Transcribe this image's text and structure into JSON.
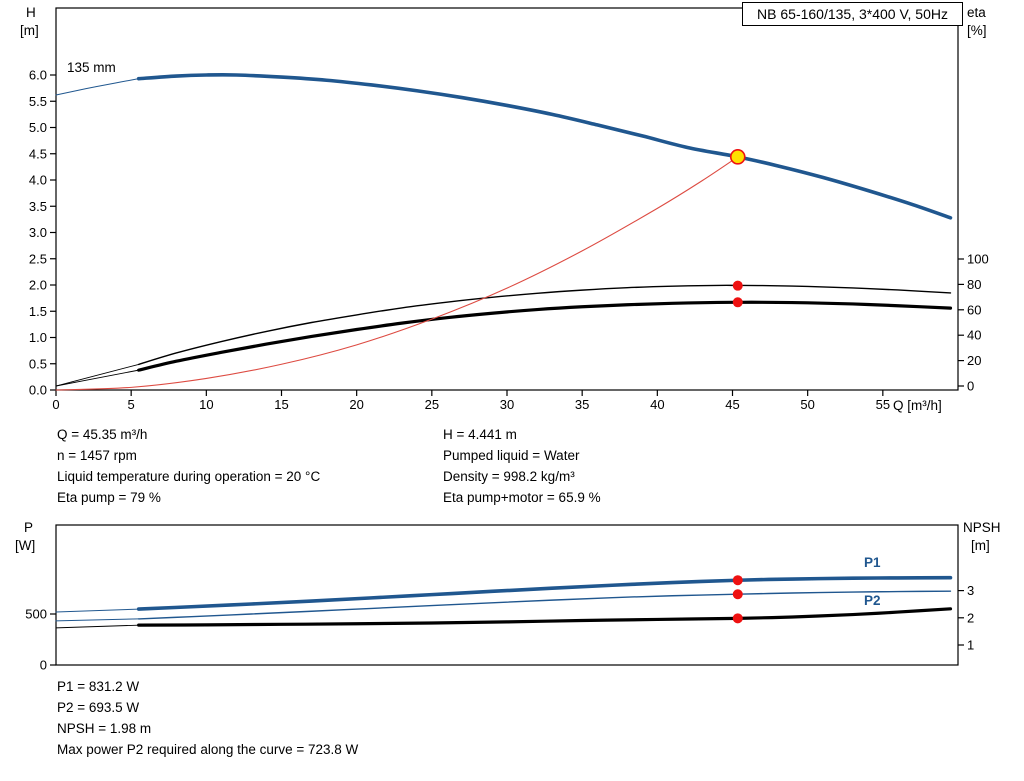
{
  "labels": {
    "h_axis": "H",
    "h_unit": "[m]",
    "eta_axis": "eta",
    "eta_unit": "[%]",
    "p_axis": "P",
    "p_unit": "[W]",
    "npsh_axis": "NPSH",
    "npsh_unit": "[m]",
    "impeller": "135 mm",
    "p1": "P1",
    "p2": "P2"
  },
  "colors": {
    "curve_blue": "#20578f",
    "curve_red": "#dd4b42",
    "dot_red": "#ee1111",
    "duty_yellow": "#ffe000",
    "black": "#000000"
  },
  "info_top_left": [
    "Q = 45.35 m³/h",
    "n = 1457 rpm",
    "Liquid temperature during operation = 20 °C",
    "Eta pump = 79 %"
  ],
  "info_top_right": [
    "H = 4.441 m",
    "Pumped liquid = Water",
    "Density = 998.2 kg/m³",
    "Eta pump+motor = 65.9 %"
  ],
  "info_bottom": [
    "P1 = 831.2 W",
    "P2 = 693.5 W",
    "NPSH = 1.98 m",
    "Max power P2 required along the curve = 723.8 W"
  ],
  "chart_data": [
    {
      "type": "line",
      "title": "NB 65-160/135, 3*400 V, 50Hz",
      "x_axis": {
        "label": "Q [m³/h]",
        "range": [
          0,
          60
        ],
        "ticks": [
          0,
          5,
          10,
          15,
          20,
          25,
          30,
          35,
          40,
          45,
          50,
          55
        ],
        "tick_labels": [
          "0",
          "5",
          "10",
          "15",
          "20",
          "25",
          "30",
          "35",
          "40",
          "45",
          "50",
          "55"
        ]
      },
      "left_axis": {
        "name": "H",
        "label": "H [m]",
        "range": [
          0,
          7.28
        ],
        "ticks": [
          0,
          0.5,
          1,
          1.5,
          2,
          2.5,
          3,
          3.5,
          4,
          4.5,
          5,
          5.5,
          6
        ],
        "tick_labels": [
          "0.0",
          "0.5",
          "1.0",
          "1.5",
          "2.0",
          "2.5",
          "3.0",
          "3.5",
          "4.0",
          "4.5",
          "5.0",
          "5.5",
          "6.0"
        ]
      },
      "right_axis": {
        "name": "eta",
        "label": "eta [%]",
        "range": [
          0,
          100
        ],
        "ticks": [
          0,
          20,
          40,
          60,
          80,
          100
        ],
        "tick_labels": [
          "0",
          "20",
          "40",
          "60",
          "80",
          "100"
        ]
      },
      "series": [
        {
          "name": "head-curve-lead",
          "axis": "H",
          "color": "#20578f",
          "width": 1,
          "points": [
            [
              0,
              5.62
            ],
            [
              2,
              5.74
            ],
            [
              4,
              5.85
            ],
            [
              5.5,
              5.93
            ]
          ]
        },
        {
          "name": "head-curve-135mm",
          "axis": "H",
          "color": "#20578f",
          "width": 3.6,
          "points": [
            [
              5.5,
              5.93
            ],
            [
              8,
              5.98
            ],
            [
              10,
              6.0
            ],
            [
              12,
              6.0
            ],
            [
              15,
              5.96
            ],
            [
              18,
              5.9
            ],
            [
              21,
              5.81
            ],
            [
              24,
              5.7
            ],
            [
              27,
              5.57
            ],
            [
              30,
              5.42
            ],
            [
              33,
              5.25
            ],
            [
              36,
              5.05
            ],
            [
              39,
              4.84
            ],
            [
              42,
              4.62
            ],
            [
              45.35,
              4.44
            ],
            [
              48,
              4.27
            ],
            [
              51,
              4.05
            ],
            [
              54,
              3.8
            ],
            [
              57,
              3.53
            ],
            [
              59.5,
              3.28
            ]
          ]
        },
        {
          "name": "eta-pump-lead",
          "axis": "eta",
          "color": "#000000",
          "width": 0.9,
          "points": [
            [
              0,
              0
            ],
            [
              5.5,
              17
            ]
          ]
        },
        {
          "name": "eta-pump-motor-lead",
          "axis": "eta",
          "color": "#000000",
          "width": 0.9,
          "points": [
            [
              0,
              0
            ],
            [
              5.5,
              12.5
            ]
          ]
        },
        {
          "name": "eta-pump-curve",
          "axis": "eta",
          "color": "#000000",
          "width": 1.4,
          "points": [
            [
              5.5,
              17
            ],
            [
              8,
              26
            ],
            [
              11,
              35
            ],
            [
              14,
              43
            ],
            [
              17,
              50
            ],
            [
              20,
              56
            ],
            [
              23,
              61.5
            ],
            [
              26,
              66
            ],
            [
              29,
              69.8
            ],
            [
              32,
              73
            ],
            [
              35,
              75.5
            ],
            [
              38,
              77.4
            ],
            [
              41,
              78.6
            ],
            [
              44,
              79.2
            ],
            [
              45.35,
              79.2
            ],
            [
              47,
              79.1
            ],
            [
              50,
              78.4
            ],
            [
              53,
              77.2
            ],
            [
              56,
              75.6
            ],
            [
              59.5,
              73.3
            ]
          ]
        },
        {
          "name": "eta-pump-motor-curve",
          "axis": "eta",
          "color": "#000000",
          "width": 3.2,
          "points": [
            [
              5.5,
              12.5
            ],
            [
              8,
              19.5
            ],
            [
              11,
              26.5
            ],
            [
              14,
              33
            ],
            [
              17,
              39
            ],
            [
              20,
              44.5
            ],
            [
              23,
              49.5
            ],
            [
              26,
              53.8
            ],
            [
              29,
              57.3
            ],
            [
              32,
              60.2
            ],
            [
              35,
              62.4
            ],
            [
              38,
              64
            ],
            [
              41,
              65.1
            ],
            [
              44,
              65.8
            ],
            [
              45.35,
              65.9
            ],
            [
              47,
              65.9
            ],
            [
              50,
              65.5
            ],
            [
              53,
              64.6
            ],
            [
              56,
              63.2
            ],
            [
              59.5,
              61.3
            ]
          ]
        },
        {
          "name": "system-curve",
          "axis": "H",
          "color": "#dd4b42",
          "width": 1.1,
          "points": [
            [
              0,
              0
            ],
            [
              5,
              0.05
            ],
            [
              10,
              0.22
            ],
            [
              15,
              0.49
            ],
            [
              20,
              0.86
            ],
            [
              25,
              1.35
            ],
            [
              30,
              1.94
            ],
            [
              35,
              2.65
            ],
            [
              40,
              3.46
            ],
            [
              43,
              3.99
            ],
            [
              45.35,
              4.44
            ]
          ]
        }
      ],
      "markers": [
        {
          "name": "duty-point",
          "axis": "H",
          "q": 45.35,
          "value": 4.441,
          "r": 7,
          "fill": "#ffe000",
          "stroke": "#ee1111",
          "stroke_width": 1.6
        },
        {
          "name": "eta-pump-point",
          "axis": "eta",
          "q": 45.35,
          "value": 79,
          "r": 5,
          "fill": "#ee1111"
        },
        {
          "name": "eta-pump-motor-point",
          "axis": "eta",
          "q": 45.35,
          "value": 65.9,
          "r": 5,
          "fill": "#ee1111"
        }
      ]
    },
    {
      "type": "line",
      "title": "",
      "x_axis": {
        "label": "",
        "range": [
          0,
          60
        ],
        "ticks": [],
        "tick_labels": []
      },
      "left_axis": {
        "name": "P",
        "label": "P [W]",
        "range": [
          0,
          1400
        ],
        "ticks": [
          0,
          500
        ],
        "tick_labels": [
          "0",
          "500"
        ]
      },
      "right_axis": {
        "name": "NPSH",
        "label": "NPSH [m]",
        "range": [
          0,
          6
        ],
        "ticks": [
          1,
          2,
          3
        ],
        "tick_labels": [
          "1",
          "2",
          "3"
        ]
      },
      "series": [
        {
          "name": "p1-lead",
          "axis": "P",
          "color": "#20578f",
          "width": 1,
          "points": [
            [
              0,
              520
            ],
            [
              5.5,
              548
            ]
          ]
        },
        {
          "name": "p1-curve",
          "axis": "P",
          "color": "#20578f",
          "width": 3.6,
          "points": [
            [
              5.5,
              548
            ],
            [
              9,
              571
            ],
            [
              13,
              598
            ],
            [
              17,
              627
            ],
            [
              21,
              658
            ],
            [
              25,
              690
            ],
            [
              29,
              722
            ],
            [
              33,
              753
            ],
            [
              37,
              782
            ],
            [
              41,
              808
            ],
            [
              45.35,
              831
            ],
            [
              49,
              843
            ],
            [
              53,
              851
            ],
            [
              56,
              854
            ],
            [
              59.5,
              856
            ]
          ]
        },
        {
          "name": "p2-lead",
          "axis": "P",
          "color": "#20578f",
          "width": 1,
          "points": [
            [
              0,
              432
            ],
            [
              5.5,
              452
            ]
          ]
        },
        {
          "name": "p2-curve",
          "axis": "P",
          "color": "#20578f",
          "width": 1.4,
          "points": [
            [
              5.5,
              452
            ],
            [
              9,
              474
            ],
            [
              13,
              500
            ],
            [
              17,
              527
            ],
            [
              21,
              555
            ],
            [
              25,
              583
            ],
            [
              29,
              610
            ],
            [
              33,
              636
            ],
            [
              37,
              660
            ],
            [
              41,
              679
            ],
            [
              45.35,
              694
            ],
            [
              49,
              706
            ],
            [
              53,
              715
            ],
            [
              56,
              720
            ],
            [
              59.5,
              724
            ]
          ]
        },
        {
          "name": "npsh-lead",
          "axis": "NPSH",
          "color": "#000000",
          "width": 0.9,
          "points": [
            [
              0,
              1.63
            ],
            [
              5.5,
              1.73
            ]
          ]
        },
        {
          "name": "npsh-curve",
          "axis": "NPSH",
          "color": "#000000",
          "width": 3.2,
          "points": [
            [
              5.5,
              1.73
            ],
            [
              10,
              1.74
            ],
            [
              15,
              1.76
            ],
            [
              20,
              1.78
            ],
            [
              25,
              1.81
            ],
            [
              30,
              1.85
            ],
            [
              35,
              1.9
            ],
            [
              40,
              1.94
            ],
            [
              45.35,
              1.98
            ],
            [
              49,
              2.03
            ],
            [
              53,
              2.12
            ],
            [
              56,
              2.21
            ],
            [
              59.5,
              2.33
            ]
          ]
        }
      ],
      "markers": [
        {
          "name": "p1-point",
          "axis": "P",
          "q": 45.35,
          "value": 831.2,
          "r": 5,
          "fill": "#ee1111"
        },
        {
          "name": "p2-point",
          "axis": "P",
          "q": 45.35,
          "value": 693.5,
          "r": 5,
          "fill": "#ee1111"
        },
        {
          "name": "npsh-point",
          "axis": "NPSH",
          "q": 45.35,
          "value": 1.98,
          "r": 5,
          "fill": "#ee1111"
        }
      ]
    }
  ]
}
